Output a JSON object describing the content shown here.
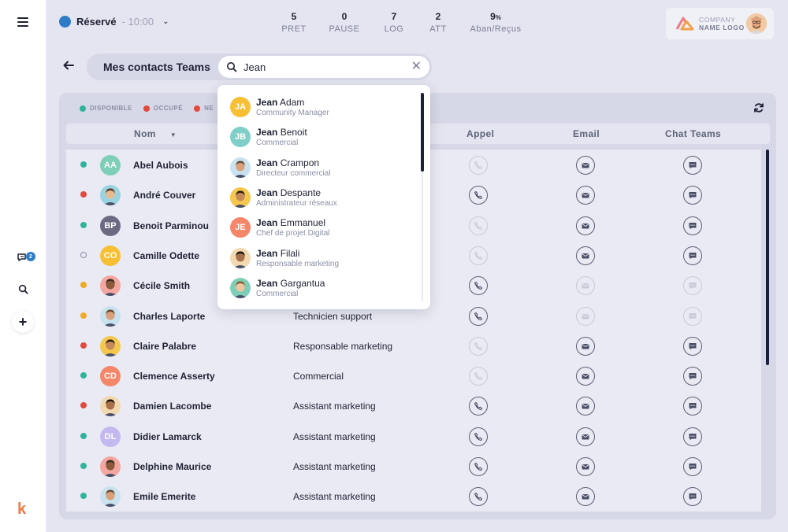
{
  "status": {
    "label": "Réservé",
    "time": "- 10:00"
  },
  "stats": [
    {
      "value": "5",
      "unit": "",
      "label": "PRET"
    },
    {
      "value": "0",
      "unit": "",
      "label": "PAUSE"
    },
    {
      "value": "7",
      "unit": "",
      "label": "LOG"
    },
    {
      "value": "2",
      "unit": "",
      "label": "ATT"
    },
    {
      "value": "9",
      "unit": "%",
      "label": "Aban/Reçus"
    }
  ],
  "brand": {
    "line1": "COMPANY",
    "line2": "NAME LOGO"
  },
  "rail": {
    "chat_badge": "2",
    "app_logo": "k"
  },
  "header": {
    "title": "Mes contacts Teams"
  },
  "search": {
    "value": "Jean"
  },
  "legend": [
    "DISPONIBLE",
    "OCCUPÉ",
    "NE"
  ],
  "columns": {
    "name": "Nom",
    "call": "Appel",
    "email": "Email",
    "chat": "Chat Teams"
  },
  "colors": {
    "available": "#2fb39a",
    "busy": "#e2483d",
    "away": "#f3a922",
    "offline": "#8a8fa4",
    "accent": "#2e7bc7"
  },
  "contacts": [
    {
      "name": "Abel Aubois",
      "initials": "AA",
      "role": "",
      "status": "available",
      "call": false,
      "email": true,
      "chat": true
    },
    {
      "name": "André Couver",
      "initials": "",
      "role": "",
      "status": "busy",
      "call": true,
      "email": true,
      "chat": true
    },
    {
      "name": "Benoit Parminou",
      "initials": "BP",
      "role": "",
      "status": "available",
      "call": false,
      "email": true,
      "chat": true
    },
    {
      "name": "Camille Odette",
      "initials": "CO",
      "role": "",
      "status": "offline",
      "call": false,
      "email": true,
      "chat": true
    },
    {
      "name": "Cécile Smith",
      "initials": "",
      "role": "",
      "status": "away",
      "call": true,
      "email": false,
      "chat": false
    },
    {
      "name": "Charles Laporte",
      "initials": "",
      "role": "Technicien support",
      "status": "away",
      "call": true,
      "email": false,
      "chat": false
    },
    {
      "name": "Claire Palabre",
      "initials": "",
      "role": "Responsable marketing",
      "status": "busy",
      "call": false,
      "email": true,
      "chat": true
    },
    {
      "name": "Clemence Asserty",
      "initials": "CD",
      "role": "Commercial",
      "status": "available",
      "call": false,
      "email": true,
      "chat": true
    },
    {
      "name": "Damien Lacombe",
      "initials": "",
      "role": "Assistant marketing",
      "status": "busy",
      "call": true,
      "email": true,
      "chat": true
    },
    {
      "name": "Didier Lamarck",
      "initials": "DL",
      "role": "Assistant marketing",
      "status": "available",
      "call": true,
      "email": true,
      "chat": true
    },
    {
      "name": "Delphine Maurice",
      "initials": "",
      "role": "Assistant marketing",
      "status": "available",
      "call": true,
      "email": true,
      "chat": true
    },
    {
      "name": "Emile Emerite",
      "initials": "",
      "role": "Assistant marketing",
      "status": "available",
      "call": true,
      "email": true,
      "chat": true
    }
  ],
  "suggestions": [
    {
      "first": "Jean",
      "last": "Adam",
      "role": "Community Manager",
      "initials": "JA"
    },
    {
      "first": "Jean",
      "last": "Benoit",
      "role": "Commercial",
      "initials": "JB"
    },
    {
      "first": "Jean",
      "last": "Crampon",
      "role": "Directeur commercial",
      "initials": ""
    },
    {
      "first": "Jean",
      "last": "Despante",
      "role": "Administrateur réseaux",
      "initials": ""
    },
    {
      "first": "Jean",
      "last": "Emmanuel",
      "role": "Chef de projet Digital",
      "initials": "JE"
    },
    {
      "first": "Jean",
      "last": "Filali",
      "role": "Responsable marketing",
      "initials": ""
    },
    {
      "first": "Jean",
      "last": "Gargantua",
      "role": "Commercial",
      "initials": ""
    }
  ]
}
